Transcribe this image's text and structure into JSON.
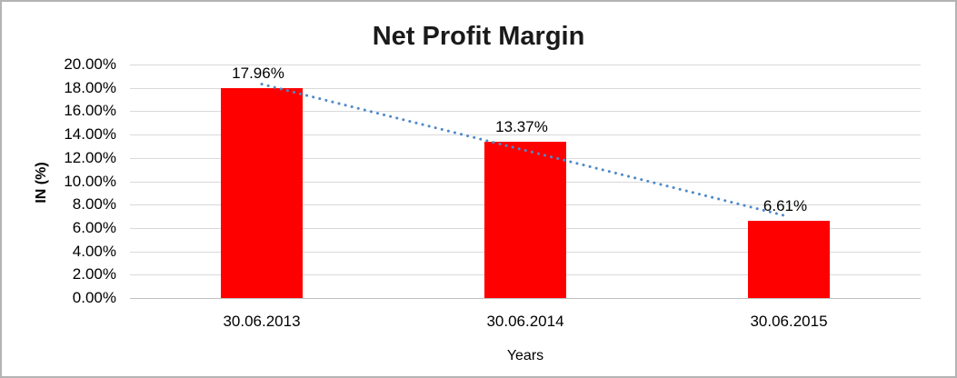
{
  "chart_data": {
    "type": "bar",
    "title": "Net Profit Margin",
    "xlabel": "Years",
    "ylabel": "IN (%)",
    "categories": [
      "30.06.2013",
      "30.06.2014",
      "30.06.2015"
    ],
    "values": [
      17.96,
      13.37,
      6.61
    ],
    "data_labels": [
      "17.96%",
      "13.37%",
      "6.61%"
    ],
    "ylim": [
      0,
      20
    ],
    "y_tick_step": 2,
    "y_tick_labels": [
      "0.00%",
      "2.00%",
      "4.00%",
      "6.00%",
      "8.00%",
      "10.00%",
      "12.00%",
      "14.00%",
      "16.00%",
      "18.00%",
      "20.00%"
    ],
    "grid": true,
    "legend": false,
    "series_name": "Net Profit Margin",
    "bar_color": "#ff0000",
    "gridline_color": "#d9d9d9",
    "axis_line_color": "#bfbfbf",
    "text_color": "#000000",
    "trendline": {
      "type": "linear",
      "style": "dotted",
      "color": "#4e8ac8"
    }
  }
}
